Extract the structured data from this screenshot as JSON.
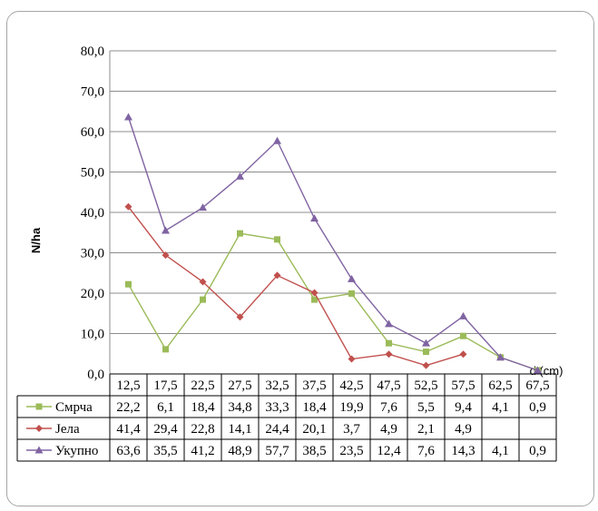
{
  "chart_data": {
    "type": "line",
    "title": "",
    "xlabel": "d (cm)",
    "ylabel": "N/ha",
    "ylim": [
      0,
      80
    ],
    "yticks": [
      "0,0",
      "10,0",
      "20,0",
      "30,0",
      "40,0",
      "50,0",
      "60,0",
      "70,0",
      "80,0"
    ],
    "categories": [
      "12,5",
      "17,5",
      "22,5",
      "27,5",
      "32,5",
      "37,5",
      "42,5",
      "47,5",
      "52,5",
      "57,5",
      "62,5",
      "67,5"
    ],
    "grid": true,
    "legend": "data-table",
    "series": [
      {
        "name": "Смрча",
        "color": "#9bbb59",
        "marker": "square",
        "values": [
          22.2,
          6.1,
          18.4,
          34.8,
          33.3,
          18.4,
          19.9,
          7.6,
          5.5,
          9.4,
          4.1,
          0.9
        ],
        "labels": [
          "22,2",
          "6,1",
          "18,4",
          "34,8",
          "33,3",
          "18,4",
          "19,9",
          "7,6",
          "5,5",
          "9,4",
          "4,1",
          "0,9"
        ]
      },
      {
        "name": "Јела",
        "color": "#c0504d",
        "marker": "diamond",
        "values": [
          41.4,
          29.4,
          22.8,
          14.1,
          24.4,
          20.1,
          3.7,
          4.9,
          2.1,
          4.9,
          null,
          null
        ],
        "labels": [
          "41,4",
          "29,4",
          "22,8",
          "14,1",
          "24,4",
          "20,1",
          "3,7",
          "4,9",
          "2,1",
          "4,9",
          "",
          ""
        ]
      },
      {
        "name": "Укупно",
        "color": "#8064a2",
        "marker": "triangle",
        "values": [
          63.6,
          35.5,
          41.2,
          48.9,
          57.7,
          38.5,
          23.5,
          12.4,
          7.6,
          14.3,
          4.1,
          0.9
        ],
        "labels": [
          "63,6",
          "35,5",
          "41,2",
          "48,9",
          "57,7",
          "38,5",
          "23,5",
          "12,4",
          "7,6",
          "14,3",
          "4,1",
          "0,9"
        ]
      }
    ]
  }
}
